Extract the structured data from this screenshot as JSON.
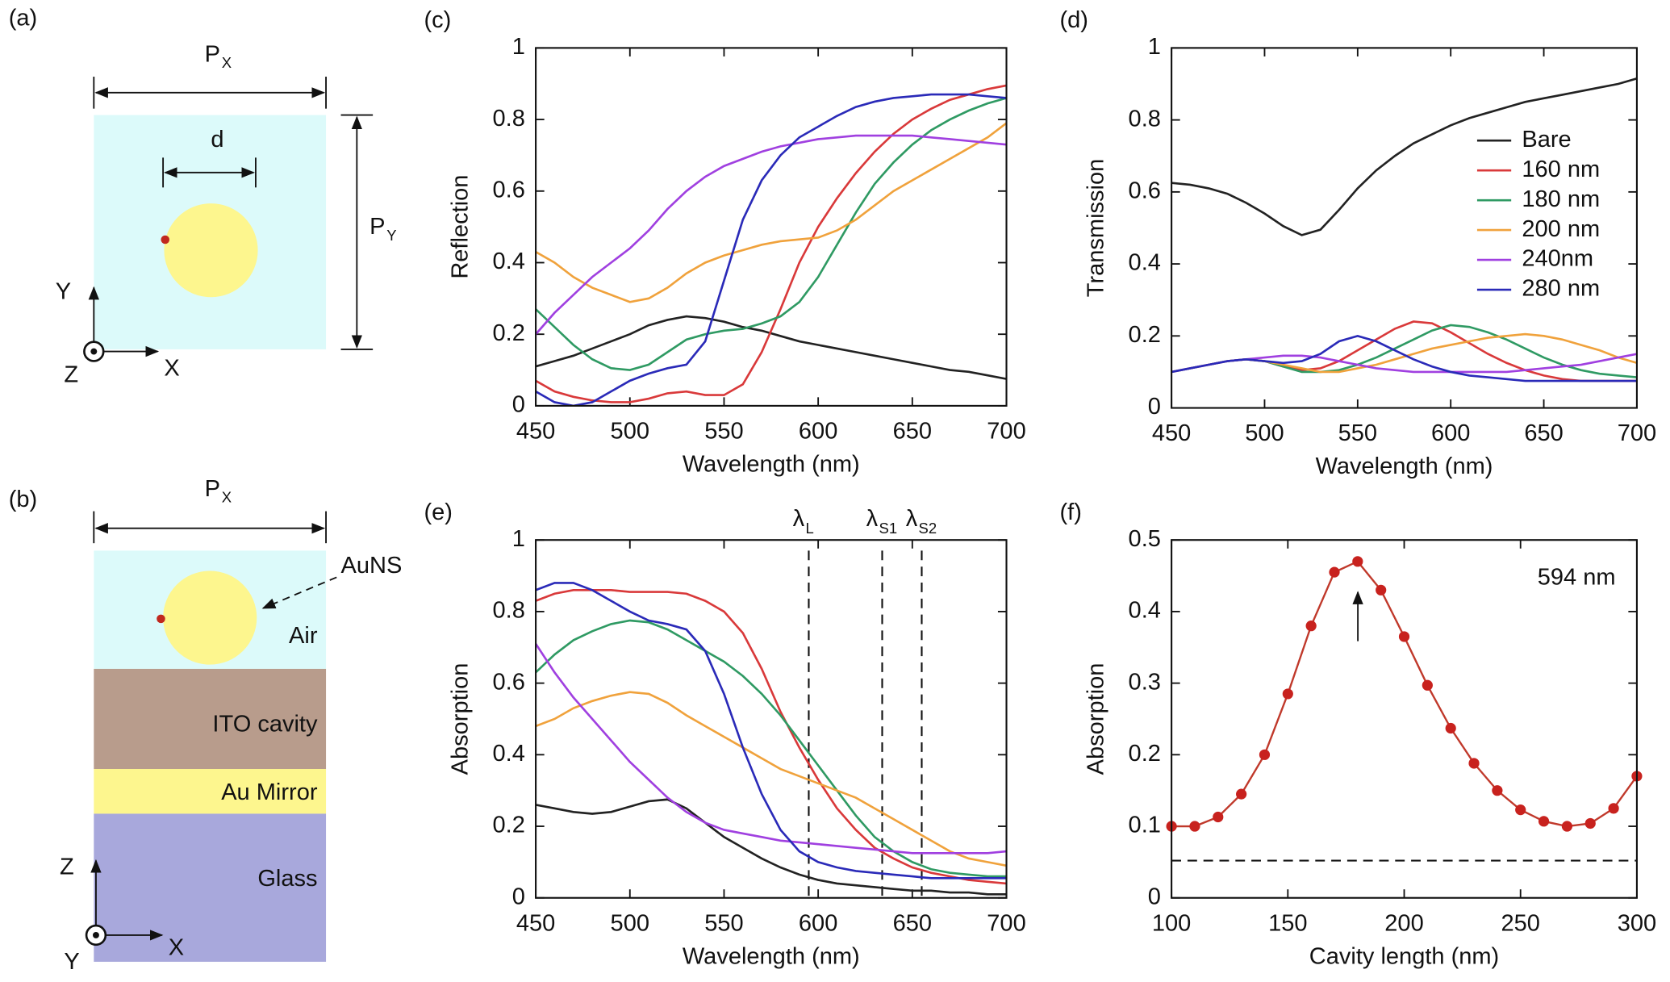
{
  "panels": {
    "a": {
      "label": "(a)",
      "px": {
        "main": "P",
        "sub": "X"
      },
      "d": "d",
      "py": {
        "main": "P",
        "sub": "Y"
      },
      "axis_y": "Y",
      "axis_z": "Z",
      "axis_x": "X"
    },
    "b": {
      "label": "(b)",
      "px": {
        "main": "P",
        "sub": "X"
      },
      "particle": "AuNS",
      "air": "Air",
      "cavity": "ITO cavity",
      "mirror": "Au Mirror",
      "glass": "Glass",
      "axis_z": "Z",
      "axis_y": "Y",
      "axis_x": "X"
    }
  },
  "chart_data": [
    {
      "type": "line",
      "label": "(c)",
      "xlabel": "Wavelength (nm)",
      "ylabel": "Reflection",
      "x": [
        450,
        460,
        470,
        480,
        490,
        500,
        510,
        520,
        530,
        540,
        550,
        560,
        570,
        580,
        590,
        600,
        610,
        620,
        630,
        640,
        650,
        660,
        670,
        680,
        690,
        700
      ],
      "xlim": [
        450,
        700
      ],
      "xticks": [
        450,
        500,
        550,
        600,
        650,
        700
      ],
      "ylim": [
        0,
        1
      ],
      "yticks": [
        0,
        0.2,
        0.4,
        0.6,
        0.8,
        1
      ],
      "series": [
        {
          "color": "#222222",
          "values": [
            0.11,
            0.125,
            0.14,
            0.16,
            0.18,
            0.2,
            0.225,
            0.24,
            0.25,
            0.245,
            0.235,
            0.22,
            0.21,
            0.195,
            0.18,
            0.17,
            0.16,
            0.15,
            0.14,
            0.13,
            0.12,
            0.11,
            0.1,
            0.095,
            0.085,
            0.075
          ]
        },
        {
          "color": "#d9393a",
          "values": [
            0.07,
            0.04,
            0.025,
            0.015,
            0.01,
            0.01,
            0.02,
            0.035,
            0.04,
            0.03,
            0.03,
            0.06,
            0.15,
            0.27,
            0.4,
            0.5,
            0.58,
            0.65,
            0.71,
            0.76,
            0.8,
            0.83,
            0.855,
            0.87,
            0.885,
            0.895
          ]
        },
        {
          "color": "#2f9a63",
          "values": [
            0.27,
            0.22,
            0.17,
            0.13,
            0.105,
            0.1,
            0.115,
            0.15,
            0.185,
            0.2,
            0.21,
            0.215,
            0.23,
            0.25,
            0.29,
            0.36,
            0.45,
            0.54,
            0.62,
            0.68,
            0.73,
            0.77,
            0.8,
            0.825,
            0.845,
            0.86
          ]
        },
        {
          "color": "#f0a23c",
          "values": [
            0.43,
            0.4,
            0.36,
            0.33,
            0.31,
            0.29,
            0.3,
            0.33,
            0.37,
            0.4,
            0.42,
            0.435,
            0.45,
            0.46,
            0.465,
            0.47,
            0.49,
            0.52,
            0.56,
            0.6,
            0.63,
            0.66,
            0.69,
            0.72,
            0.75,
            0.79
          ]
        },
        {
          "color": "#a040e0",
          "values": [
            0.2,
            0.26,
            0.31,
            0.36,
            0.4,
            0.44,
            0.49,
            0.55,
            0.6,
            0.64,
            0.67,
            0.69,
            0.71,
            0.725,
            0.735,
            0.745,
            0.75,
            0.755,
            0.755,
            0.755,
            0.755,
            0.75,
            0.745,
            0.74,
            0.735,
            0.73
          ]
        },
        {
          "color": "#2a2ab8",
          "values": [
            0.04,
            0.01,
            0.0,
            0.01,
            0.04,
            0.07,
            0.09,
            0.105,
            0.115,
            0.18,
            0.35,
            0.52,
            0.63,
            0.7,
            0.75,
            0.78,
            0.81,
            0.835,
            0.85,
            0.86,
            0.865,
            0.87,
            0.87,
            0.87,
            0.865,
            0.86
          ]
        }
      ]
    },
    {
      "type": "line",
      "label": "(d)",
      "xlabel": "Wavelength (nm)",
      "ylabel": "Transmission",
      "legend": "right",
      "x": [
        450,
        460,
        470,
        480,
        490,
        500,
        510,
        520,
        530,
        540,
        550,
        560,
        570,
        580,
        590,
        600,
        610,
        620,
        630,
        640,
        650,
        660,
        670,
        680,
        690,
        700
      ],
      "xlim": [
        450,
        700
      ],
      "xticks": [
        450,
        500,
        550,
        600,
        650,
        700
      ],
      "ylim": [
        0,
        1
      ],
      "yticks": [
        0,
        0.2,
        0.4,
        0.6,
        0.8,
        1
      ],
      "series": [
        {
          "name": "Bare",
          "color": "#222222",
          "values": [
            0.625,
            0.62,
            0.61,
            0.595,
            0.57,
            0.54,
            0.505,
            0.48,
            0.495,
            0.55,
            0.61,
            0.66,
            0.7,
            0.735,
            0.76,
            0.785,
            0.805,
            0.82,
            0.835,
            0.85,
            0.86,
            0.87,
            0.88,
            0.89,
            0.9,
            0.915
          ]
        },
        {
          "name": "160 nm",
          "color": "#d9393a",
          "values": [
            0.1,
            0.11,
            0.12,
            0.13,
            0.135,
            0.13,
            0.115,
            0.105,
            0.11,
            0.13,
            0.16,
            0.19,
            0.22,
            0.24,
            0.235,
            0.21,
            0.18,
            0.15,
            0.125,
            0.105,
            0.09,
            0.08,
            0.075,
            0.075,
            0.075,
            0.075
          ]
        },
        {
          "name": "180 nm",
          "color": "#2f9a63",
          "values": [
            0.1,
            0.11,
            0.12,
            0.13,
            0.135,
            0.13,
            0.115,
            0.1,
            0.1,
            0.105,
            0.12,
            0.14,
            0.165,
            0.19,
            0.215,
            0.23,
            0.225,
            0.21,
            0.19,
            0.165,
            0.14,
            0.12,
            0.105,
            0.095,
            0.09,
            0.085
          ]
        },
        {
          "name": "200 nm",
          "color": "#f0a23c",
          "values": [
            0.1,
            0.11,
            0.12,
            0.13,
            0.135,
            0.13,
            0.12,
            0.11,
            0.1,
            0.1,
            0.11,
            0.12,
            0.135,
            0.15,
            0.165,
            0.175,
            0.185,
            0.195,
            0.2,
            0.205,
            0.2,
            0.19,
            0.175,
            0.16,
            0.14,
            0.125
          ]
        },
        {
          "name": "240nm",
          "color": "#a040e0",
          "values": [
            0.1,
            0.11,
            0.12,
            0.13,
            0.135,
            0.14,
            0.145,
            0.145,
            0.14,
            0.13,
            0.12,
            0.11,
            0.105,
            0.1,
            0.1,
            0.1,
            0.1,
            0.1,
            0.1,
            0.105,
            0.11,
            0.115,
            0.12,
            0.13,
            0.14,
            0.15
          ]
        },
        {
          "name": "280 nm",
          "color": "#2a2ab8",
          "values": [
            0.1,
            0.11,
            0.12,
            0.13,
            0.135,
            0.13,
            0.125,
            0.13,
            0.15,
            0.185,
            0.2,
            0.185,
            0.16,
            0.135,
            0.115,
            0.1,
            0.09,
            0.085,
            0.08,
            0.075,
            0.075,
            0.075,
            0.075,
            0.075,
            0.075,
            0.075
          ]
        }
      ]
    },
    {
      "type": "line",
      "label": "(e)",
      "xlabel": "Wavelength (nm)",
      "ylabel": "Absorption",
      "x": [
        450,
        460,
        470,
        480,
        490,
        500,
        510,
        520,
        530,
        540,
        550,
        560,
        570,
        580,
        590,
        600,
        610,
        620,
        630,
        640,
        650,
        660,
        670,
        680,
        690,
        700
      ],
      "xlim": [
        450,
        700
      ],
      "xticks": [
        450,
        500,
        550,
        600,
        650,
        700
      ],
      "ylim": [
        0,
        1
      ],
      "yticks": [
        0,
        0.2,
        0.4,
        0.6,
        0.8,
        1
      ],
      "vlines": [
        {
          "value": 595,
          "label": "λ",
          "sub": "L"
        },
        {
          "value": 634,
          "label": "λ",
          "sub": "S1"
        },
        {
          "value": 655,
          "label": "λ",
          "sub": "S2"
        }
      ],
      "series": [
        {
          "color": "#222222",
          "values": [
            0.26,
            0.25,
            0.24,
            0.235,
            0.24,
            0.255,
            0.27,
            0.275,
            0.25,
            0.21,
            0.17,
            0.14,
            0.11,
            0.085,
            0.065,
            0.05,
            0.04,
            0.035,
            0.03,
            0.025,
            0.02,
            0.02,
            0.015,
            0.015,
            0.01,
            0.01
          ]
        },
        {
          "color": "#d9393a",
          "values": [
            0.83,
            0.85,
            0.86,
            0.86,
            0.86,
            0.855,
            0.855,
            0.855,
            0.85,
            0.83,
            0.8,
            0.74,
            0.64,
            0.52,
            0.42,
            0.33,
            0.25,
            0.19,
            0.14,
            0.11,
            0.085,
            0.07,
            0.06,
            0.05,
            0.045,
            0.04
          ]
        },
        {
          "color": "#2f9a63",
          "values": [
            0.63,
            0.68,
            0.72,
            0.745,
            0.765,
            0.775,
            0.77,
            0.75,
            0.72,
            0.69,
            0.66,
            0.62,
            0.57,
            0.51,
            0.44,
            0.37,
            0.3,
            0.23,
            0.17,
            0.13,
            0.1,
            0.08,
            0.07,
            0.065,
            0.06,
            0.06
          ]
        },
        {
          "color": "#f0a23c",
          "values": [
            0.48,
            0.5,
            0.53,
            0.55,
            0.565,
            0.575,
            0.57,
            0.545,
            0.51,
            0.48,
            0.45,
            0.42,
            0.39,
            0.36,
            0.34,
            0.32,
            0.3,
            0.28,
            0.25,
            0.22,
            0.19,
            0.16,
            0.13,
            0.11,
            0.1,
            0.09
          ]
        },
        {
          "color": "#a040e0",
          "values": [
            0.71,
            0.63,
            0.56,
            0.5,
            0.44,
            0.38,
            0.33,
            0.28,
            0.24,
            0.21,
            0.19,
            0.18,
            0.17,
            0.16,
            0.155,
            0.15,
            0.145,
            0.14,
            0.135,
            0.13,
            0.125,
            0.125,
            0.125,
            0.125,
            0.125,
            0.13
          ]
        },
        {
          "color": "#2a2ab8",
          "values": [
            0.86,
            0.88,
            0.88,
            0.86,
            0.83,
            0.8,
            0.775,
            0.765,
            0.75,
            0.69,
            0.57,
            0.42,
            0.29,
            0.19,
            0.13,
            0.1,
            0.085,
            0.075,
            0.07,
            0.065,
            0.06,
            0.055,
            0.055,
            0.055,
            0.055,
            0.055
          ]
        }
      ]
    },
    {
      "type": "line",
      "label": "(f)",
      "xlabel": "Cavity length (nm)",
      "ylabel": "Absorption",
      "markers": true,
      "annotation": "594 nm",
      "x": [
        100,
        110,
        120,
        130,
        140,
        150,
        160,
        170,
        180,
        190,
        200,
        210,
        220,
        230,
        240,
        250,
        260,
        270,
        280,
        290,
        300
      ],
      "xlim": [
        100,
        300
      ],
      "xticks": [
        100,
        150,
        200,
        250,
        300
      ],
      "ylim": [
        0,
        0.5
      ],
      "yticks": [
        0,
        0.1,
        0.2,
        0.3,
        0.4,
        0.5
      ],
      "hlines": [
        0.052
      ],
      "series": [
        {
          "color": "#c0392b",
          "values": [
            0.1,
            0.1,
            0.113,
            0.145,
            0.2,
            0.285,
            0.38,
            0.455,
            0.47,
            0.43,
            0.365,
            0.297,
            0.237,
            0.188,
            0.15,
            0.123,
            0.107,
            0.1,
            0.104,
            0.125,
            0.17
          ]
        }
      ]
    }
  ]
}
